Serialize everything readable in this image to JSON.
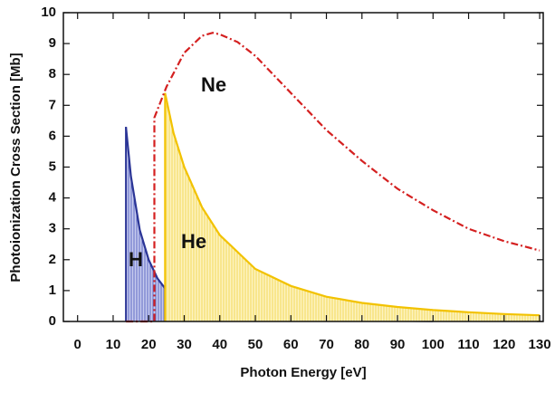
{
  "chart_data": {
    "type": "area",
    "xlabel": "Photon Energy [eV]",
    "ylabel": "Photoionization Cross Section [Mb]",
    "xlim": [
      -4,
      131
    ],
    "ylim": [
      0,
      10
    ],
    "xticks": [
      0,
      10,
      20,
      30,
      40,
      50,
      60,
      70,
      80,
      90,
      100,
      110,
      120,
      130
    ],
    "yticks": [
      0,
      1,
      2,
      3,
      4,
      5,
      6,
      7,
      8,
      9,
      10
    ],
    "series": [
      {
        "name": "H",
        "color": "#2b3596",
        "fill": "#8c96d6",
        "filled": true,
        "x": [
          13.6,
          15,
          17.5,
          20,
          22.5,
          25,
          30,
          35,
          40,
          50,
          60,
          70,
          80,
          90,
          100
        ],
        "values": [
          6.3,
          4.7,
          2.96,
          2.0,
          1.39,
          1.01,
          0.59,
          0.37,
          0.25,
          0.13,
          0.07,
          0.05,
          0.03,
          0.02,
          0.01
        ]
      },
      {
        "name": "He",
        "color": "#f2c200",
        "fill": "#fbe88a",
        "filled": true,
        "x": [
          24.6,
          27,
          30,
          35,
          40,
          50,
          60,
          70,
          80,
          90,
          100,
          110,
          120,
          130
        ],
        "values": [
          7.4,
          6.1,
          5.0,
          3.7,
          2.8,
          1.7,
          1.15,
          0.8,
          0.6,
          0.47,
          0.37,
          0.3,
          0.24,
          0.2
        ]
      },
      {
        "name": "Ne",
        "color": "#d42020",
        "filled": false,
        "dashed": true,
        "x": [
          13.6,
          21.6,
          21.6,
          25,
          30,
          35,
          38,
          40,
          45,
          50,
          60,
          70,
          80,
          90,
          100,
          110,
          120,
          130
        ],
        "values": [
          0,
          0,
          6.6,
          7.6,
          8.7,
          9.25,
          9.35,
          9.3,
          9.05,
          8.6,
          7.4,
          6.2,
          5.2,
          4.3,
          3.6,
          3.0,
          2.6,
          2.3
        ]
      }
    ]
  }
}
